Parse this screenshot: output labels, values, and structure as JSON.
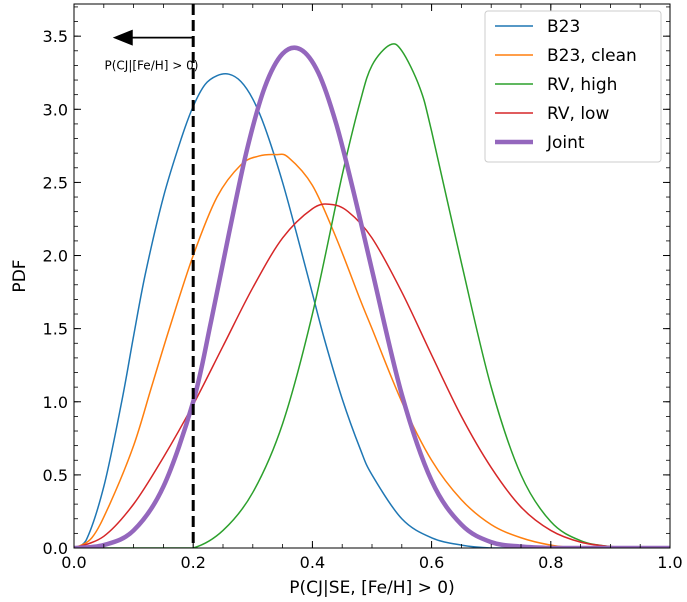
{
  "chart_data": {
    "type": "line",
    "xlabel": "P(CJ|SE, [Fe/H] > 0)",
    "ylabel": "PDF",
    "xlim": [
      0.0,
      1.0
    ],
    "ylim": [
      0.0,
      3.72
    ],
    "xticks": [
      0.0,
      0.2,
      0.4,
      0.6,
      0.8,
      1.0
    ],
    "xtick_labels": [
      "0.0",
      "0.2",
      "0.4",
      "0.6",
      "0.8",
      "1.0"
    ],
    "yticks": [
      0.0,
      0.5,
      1.0,
      1.5,
      2.0,
      2.5,
      3.0,
      3.5
    ],
    "ytick_labels": [
      "0.0",
      "0.5",
      "1.0",
      "1.5",
      "2.0",
      "2.5",
      "3.0",
      "3.5"
    ],
    "grid": false,
    "legend_position": "top-right",
    "series": [
      {
        "name": "B23",
        "color": "#1f77b4",
        "width": 1.5,
        "x": [
          0.0,
          0.02,
          0.05,
          0.08,
          0.1,
          0.12,
          0.15,
          0.18,
          0.2,
          0.22,
          0.24,
          0.26,
          0.28,
          0.3,
          0.32,
          0.35,
          0.38,
          0.4,
          0.42,
          0.45,
          0.48,
          0.5,
          0.55,
          0.6,
          0.65,
          0.7,
          0.75,
          0.8,
          0.85,
          0.9,
          0.95,
          1.0
        ],
        "y": [
          0.0,
          0.05,
          0.42,
          1.0,
          1.45,
          1.88,
          2.4,
          2.8,
          3.02,
          3.17,
          3.23,
          3.24,
          3.19,
          3.07,
          2.88,
          2.5,
          2.05,
          1.74,
          1.43,
          1.02,
          0.68,
          0.5,
          0.2,
          0.07,
          0.02,
          0.0,
          0.0,
          0.0,
          0.0,
          0.0,
          0.0,
          0.0
        ]
      },
      {
        "name": "B23, clean",
        "color": "#ff7f0e",
        "width": 1.5,
        "x": [
          0.0,
          0.03,
          0.06,
          0.1,
          0.13,
          0.16,
          0.2,
          0.24,
          0.28,
          0.31,
          0.34,
          0.36,
          0.4,
          0.44,
          0.48,
          0.5,
          0.55,
          0.6,
          0.65,
          0.7,
          0.75,
          0.8,
          0.85,
          0.9,
          0.95,
          1.0
        ],
        "y": [
          0.0,
          0.07,
          0.3,
          0.7,
          1.1,
          1.5,
          2.0,
          2.4,
          2.62,
          2.68,
          2.69,
          2.67,
          2.48,
          2.12,
          1.7,
          1.5,
          1.0,
          0.6,
          0.33,
          0.16,
          0.07,
          0.02,
          0.0,
          0.0,
          0.0,
          0.0
        ]
      },
      {
        "name": "RV, high",
        "color": "#2ca02c",
        "width": 1.5,
        "x": [
          0.2,
          0.25,
          0.3,
          0.35,
          0.4,
          0.45,
          0.48,
          0.5,
          0.53,
          0.55,
          0.58,
          0.6,
          0.65,
          0.7,
          0.75,
          0.8,
          0.85,
          0.9,
          0.95,
          1.0
        ],
        "y": [
          0.0,
          0.12,
          0.38,
          0.85,
          1.6,
          2.55,
          3.05,
          3.3,
          3.44,
          3.4,
          3.15,
          2.85,
          1.95,
          1.1,
          0.5,
          0.18,
          0.05,
          0.01,
          0.0,
          0.0
        ],
        "x_lead": [
          0.0,
          0.1,
          0.15
        ],
        "y_lead": [
          0.0,
          0.0,
          0.0
        ]
      },
      {
        "name": "RV, low",
        "color": "#d62728",
        "width": 1.5,
        "x": [
          0.0,
          0.05,
          0.1,
          0.15,
          0.2,
          0.25,
          0.3,
          0.35,
          0.4,
          0.43,
          0.46,
          0.5,
          0.55,
          0.6,
          0.65,
          0.7,
          0.75,
          0.8,
          0.85,
          0.9,
          0.95,
          1.0
        ],
        "y": [
          0.0,
          0.08,
          0.3,
          0.62,
          0.98,
          1.38,
          1.78,
          2.12,
          2.32,
          2.35,
          2.3,
          2.12,
          1.75,
          1.32,
          0.9,
          0.55,
          0.28,
          0.12,
          0.04,
          0.01,
          0.0,
          0.0
        ]
      },
      {
        "name": "Joint",
        "color": "#9467bd",
        "width": 4.5,
        "x": [
          0.0,
          0.05,
          0.1,
          0.15,
          0.2,
          0.23,
          0.26,
          0.29,
          0.32,
          0.35,
          0.38,
          0.41,
          0.44,
          0.47,
          0.5,
          0.55,
          0.6,
          0.65,
          0.7,
          0.75,
          0.8,
          0.85,
          0.9,
          1.0
        ],
        "y": [
          0.0,
          0.02,
          0.12,
          0.42,
          1.0,
          1.55,
          2.15,
          2.72,
          3.15,
          3.38,
          3.41,
          3.25,
          2.9,
          2.42,
          1.9,
          1.05,
          0.46,
          0.16,
          0.04,
          0.01,
          0.0,
          0.0,
          0.0,
          0.0
        ]
      }
    ],
    "vline": {
      "x": 0.2,
      "color": "#000000"
    },
    "annotation": {
      "text": "P(CJ|[Fe/H] > 0)",
      "arrow_from_x": 0.2,
      "arrow_to_x": 0.065,
      "arrow_y": 3.49,
      "text_x": 0.13,
      "text_y": 3.3
    }
  }
}
